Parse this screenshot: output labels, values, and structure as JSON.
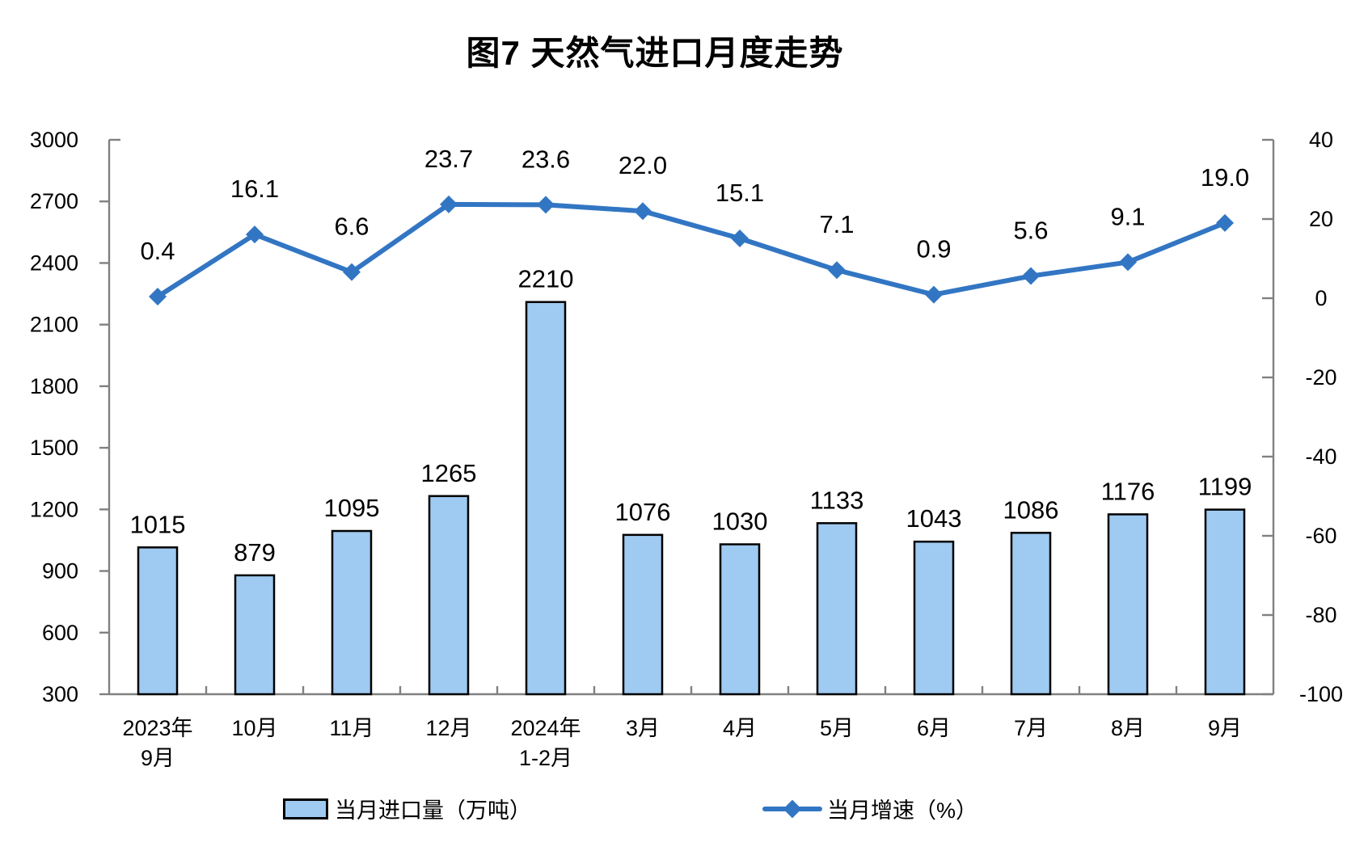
{
  "title": "图7 天然气进口月度走势",
  "chart_data": {
    "type": "bar+line",
    "title": "图7 天然气进口月度走势",
    "categories": [
      [
        "2023年",
        "9月"
      ],
      [
        "10月"
      ],
      [
        "11月"
      ],
      [
        "12月"
      ],
      [
        "2024年",
        "1-2月"
      ],
      [
        "3月"
      ],
      [
        "4月"
      ],
      [
        "5月"
      ],
      [
        "6月"
      ],
      [
        "7月"
      ],
      [
        "8月"
      ],
      [
        "9月"
      ]
    ],
    "series": [
      {
        "name": "当月进口量（万吨）",
        "type": "bar",
        "axis": "left",
        "values": [
          1015,
          879,
          1095,
          1265,
          2210,
          1076,
          1030,
          1133,
          1043,
          1086,
          1176,
          1199
        ],
        "labels": [
          "1015",
          "879",
          "1095",
          "1265",
          "2210",
          "1076",
          "1030",
          "1133",
          "1043",
          "1086",
          "1176",
          "1199"
        ]
      },
      {
        "name": "当月增速（%）",
        "type": "line",
        "axis": "right",
        "values": [
          0.4,
          16.1,
          6.6,
          23.7,
          23.6,
          22.0,
          15.1,
          7.1,
          0.9,
          5.6,
          9.1,
          19.0
        ],
        "labels": [
          "0.4",
          "16.1",
          "6.6",
          "23.7",
          "23.6",
          "22.0",
          "15.1",
          "7.1",
          "0.9",
          "5.6",
          "9.1",
          "19.0"
        ]
      }
    ],
    "left_axis": {
      "min": 300,
      "max": 3000,
      "step": 300,
      "ticks": [
        "300",
        "600",
        "900",
        "1200",
        "1500",
        "1800",
        "2100",
        "2400",
        "2700",
        "3000"
      ]
    },
    "right_axis": {
      "min": -100,
      "max": 40,
      "step": 20,
      "ticks": [
        "-100",
        "-80",
        "-60",
        "-40",
        "-20",
        "0",
        "20",
        "40"
      ]
    },
    "grid": false,
    "legend_position": "bottom",
    "colors": {
      "bar_fill": "#9FCAF1",
      "bar_border": "#000000",
      "line": "#3276C3",
      "axis": "#808080",
      "text": "#000000"
    }
  }
}
